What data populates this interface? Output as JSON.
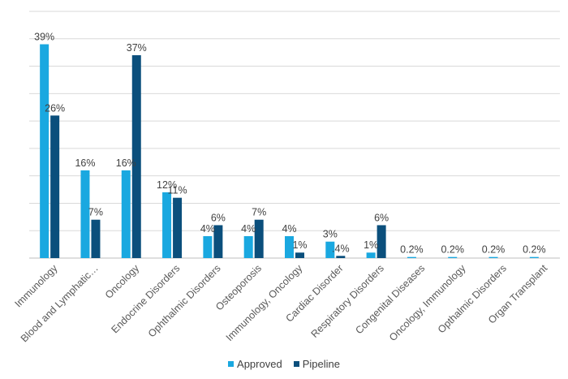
{
  "chart_data": {
    "type": "bar",
    "categories": [
      "Immunology",
      "Blood and Lymphatic…",
      "Oncology",
      "Endocrine Disorders",
      "Ophthalmic Disorders",
      "Osteoporosis",
      "Immunology, Oncology",
      "Cardiac Disorder",
      "Respiratory Disorders",
      "Congenital Diseases",
      "Oncology, Immunology",
      "Opthalmic Disorders",
      "Organ Transplant"
    ],
    "series": [
      {
        "name": "Approved",
        "color": "#1aa8e0",
        "values": [
          39,
          16,
          16,
          12,
          4,
          4,
          4,
          3,
          1,
          0.2,
          0.2,
          0.2,
          0.2
        ],
        "labels": [
          "39%",
          "16%",
          "16%",
          "12%",
          "4%",
          "4%",
          "4%",
          "3%",
          "1%",
          "0.2%",
          "0.2%",
          "0.2%",
          "0.2%"
        ]
      },
      {
        "name": "Pipeline",
        "color": "#0b4f7c",
        "values": [
          26,
          7,
          37,
          11,
          6,
          7,
          1,
          0.4,
          6,
          null,
          null,
          null,
          null
        ],
        "labels": [
          "26%",
          "7%",
          "37%",
          "11%",
          "6%",
          "7%",
          "1%",
          ".4%",
          "6%",
          "",
          "",
          "",
          ""
        ]
      }
    ],
    "ylim": [
      0,
      45
    ],
    "grid": true,
    "legend_position": "bottom"
  }
}
